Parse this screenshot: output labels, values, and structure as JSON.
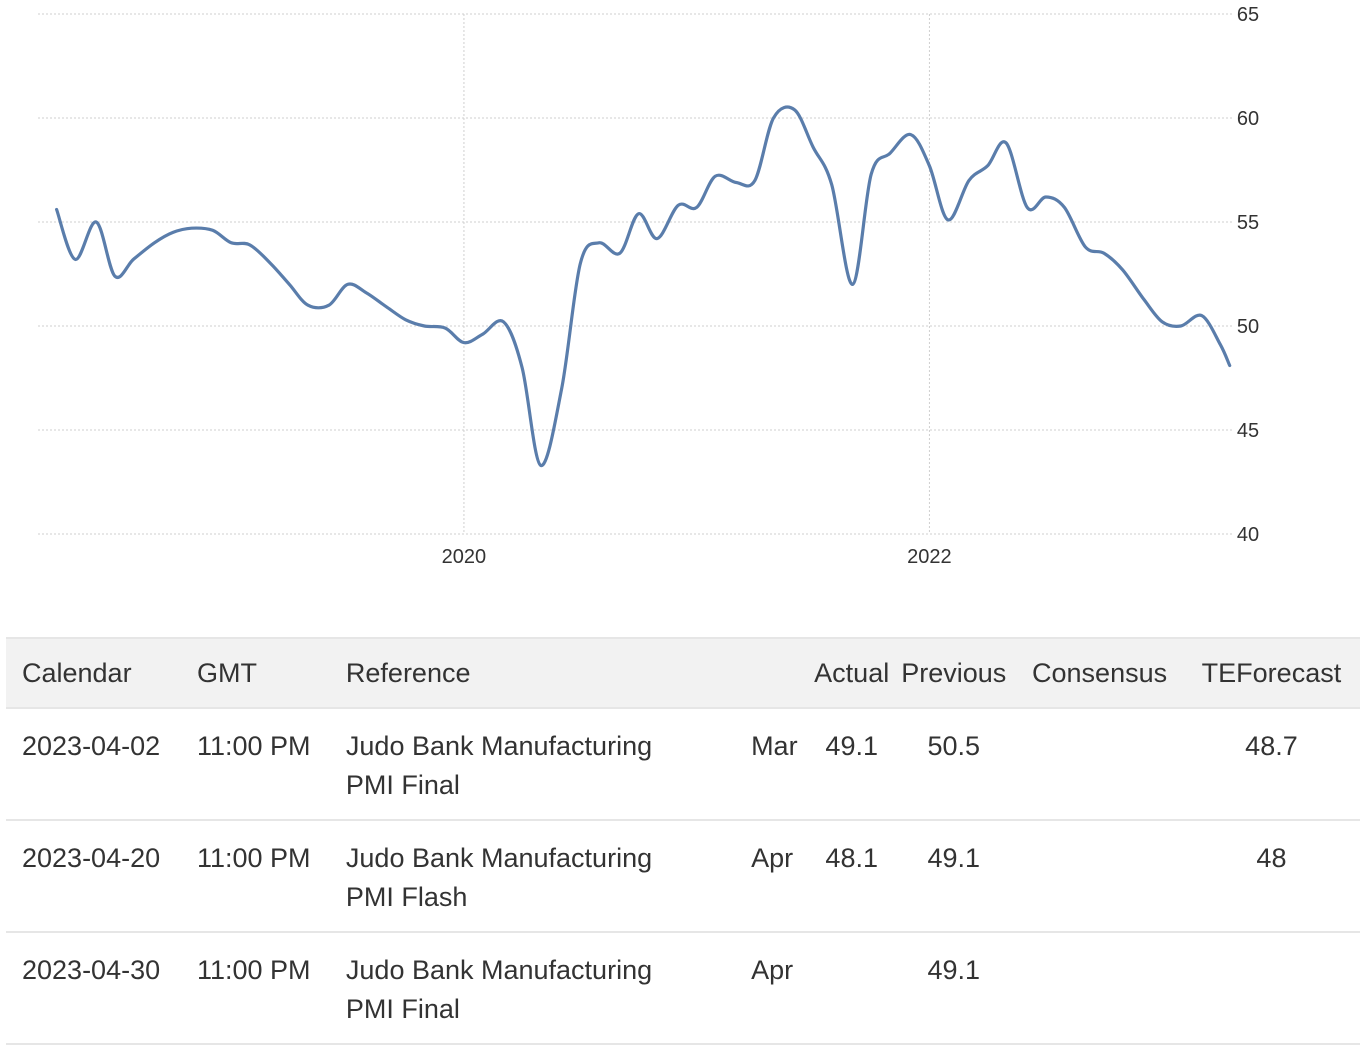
{
  "chart_data": {
    "type": "line",
    "series_color": "#5a7dab",
    "grid": true,
    "ylim": [
      40,
      65
    ],
    "yticks": [
      65,
      60,
      55,
      50,
      45,
      40
    ],
    "xticks": [
      {
        "label": "2020",
        "value": 2020.0
      },
      {
        "label": "2022",
        "value": 2022.0
      }
    ],
    "xlim": [
      2018.17,
      2023.3
    ],
    "series": [
      {
        "points": [
          [
            2018.25,
            55.6
          ],
          [
            2018.33,
            53.2
          ],
          [
            2018.42,
            55.0
          ],
          [
            2018.5,
            52.4
          ],
          [
            2018.58,
            53.2
          ],
          [
            2018.67,
            54.0
          ],
          [
            2018.75,
            54.5
          ],
          [
            2018.83,
            54.7
          ],
          [
            2018.92,
            54.6
          ],
          [
            2019.0,
            54.0
          ],
          [
            2019.08,
            53.9
          ],
          [
            2019.17,
            53.0
          ],
          [
            2019.25,
            52.0
          ],
          [
            2019.33,
            51.0
          ],
          [
            2019.42,
            51.0
          ],
          [
            2019.5,
            52.0
          ],
          [
            2019.58,
            51.6
          ],
          [
            2019.67,
            50.9
          ],
          [
            2019.75,
            50.3
          ],
          [
            2019.83,
            50.0
          ],
          [
            2019.92,
            49.9
          ],
          [
            2020.0,
            49.2
          ],
          [
            2020.08,
            49.6
          ],
          [
            2020.17,
            50.2
          ],
          [
            2020.25,
            48.0
          ],
          [
            2020.33,
            43.3
          ],
          [
            2020.42,
            47.0
          ],
          [
            2020.5,
            53.0
          ],
          [
            2020.58,
            54.0
          ],
          [
            2020.67,
            53.5
          ],
          [
            2020.75,
            55.4
          ],
          [
            2020.83,
            54.2
          ],
          [
            2020.92,
            55.8
          ],
          [
            2021.0,
            55.7
          ],
          [
            2021.08,
            57.2
          ],
          [
            2021.17,
            56.9
          ],
          [
            2021.25,
            57.0
          ],
          [
            2021.33,
            60.0
          ],
          [
            2021.42,
            60.4
          ],
          [
            2021.5,
            58.6
          ],
          [
            2021.58,
            56.8
          ],
          [
            2021.67,
            52.0
          ],
          [
            2021.75,
            57.3
          ],
          [
            2021.83,
            58.3
          ],
          [
            2021.92,
            59.2
          ],
          [
            2022.0,
            57.7
          ],
          [
            2022.08,
            55.1
          ],
          [
            2022.17,
            57.0
          ],
          [
            2022.25,
            57.7
          ],
          [
            2022.33,
            58.8
          ],
          [
            2022.42,
            55.7
          ],
          [
            2022.5,
            56.2
          ],
          [
            2022.58,
            55.7
          ],
          [
            2022.67,
            53.8
          ],
          [
            2022.75,
            53.5
          ],
          [
            2022.83,
            52.7
          ],
          [
            2022.92,
            51.3
          ],
          [
            2023.0,
            50.2
          ],
          [
            2023.08,
            50.0
          ],
          [
            2023.17,
            50.5
          ],
          [
            2023.25,
            49.1
          ],
          [
            2023.29,
            48.1
          ]
        ]
      }
    ]
  },
  "table": {
    "headers": {
      "calendar": "Calendar",
      "gmt": "GMT",
      "reference": "Reference",
      "actual": "Actual",
      "previous": "Previous",
      "consensus": "Consensus",
      "teforecast": "TEForecast"
    },
    "rows": [
      {
        "calendar": "2023-04-02",
        "gmt": "11:00 PM",
        "reference_line1": "Judo Bank Manufacturing",
        "reference_line2": "PMI Final",
        "month": "Mar",
        "actual": "49.1",
        "previous": "50.5",
        "consensus": "",
        "teforecast": "48.7"
      },
      {
        "calendar": "2023-04-20",
        "gmt": "11:00 PM",
        "reference_line1": "Judo Bank Manufacturing",
        "reference_line2": "PMI Flash",
        "month": "Apr",
        "actual": "48.1",
        "previous": "49.1",
        "consensus": "",
        "teforecast": "48"
      },
      {
        "calendar": "2023-04-30",
        "gmt": "11:00 PM",
        "reference_line1": "Judo Bank Manufacturing",
        "reference_line2": "PMI Final",
        "month": "Apr",
        "actual": "",
        "previous": "49.1",
        "consensus": "",
        "teforecast": ""
      }
    ]
  }
}
